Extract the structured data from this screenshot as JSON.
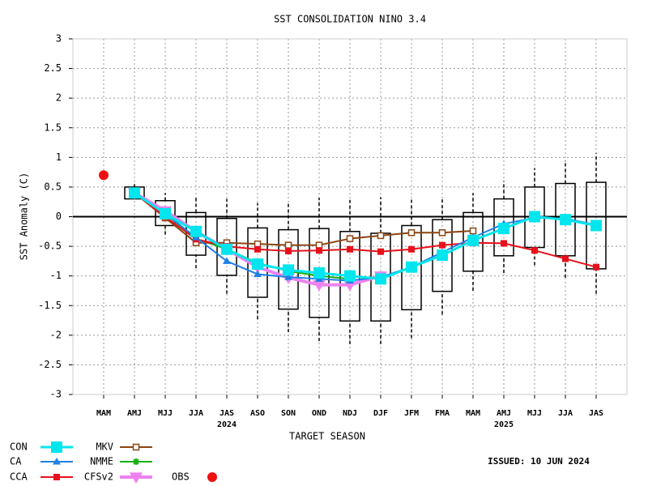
{
  "chart_data": {
    "type": "line",
    "title": "SST CONSOLIDATION NINO 3.4",
    "y_label": "SST Anomaly (C)",
    "x_label": "TARGET SEASON",
    "issued": "ISSUED: 10 JUN 2024",
    "categories": [
      "MAM",
      "AMJ",
      "MJJ",
      "JJA",
      "JAS",
      "ASO",
      "SON",
      "OND",
      "NDJ",
      "DJF",
      "JFM",
      "FMA",
      "MAM",
      "AMJ",
      "MJJ",
      "JJA",
      "JAS"
    ],
    "year_labels": [
      null,
      null,
      null,
      null,
      "2024",
      null,
      null,
      null,
      null,
      null,
      null,
      null,
      null,
      "2025",
      null,
      null,
      null
    ],
    "ylim": [
      -3,
      3
    ],
    "yticks": [
      3,
      2.5,
      2,
      1.5,
      1,
      0.5,
      0,
      -0.5,
      -1,
      -1.5,
      -2,
      -2.5,
      -3
    ],
    "grid": true,
    "boxes": {
      "min": [
        null,
        0.35,
        -0.3,
        -0.87,
        -1.3,
        -1.73,
        -1.95,
        -2.1,
        -2.15,
        -2.15,
        -2.05,
        -1.65,
        -1.25,
        -0.95,
        -0.82,
        -1.03,
        -1.3
      ],
      "q1": [
        null,
        0.3,
        -0.15,
        -0.65,
        -0.99,
        -1.36,
        -1.56,
        -1.7,
        -1.76,
        -1.76,
        -1.57,
        -1.26,
        -0.92,
        -0.66,
        -0.52,
        -0.66,
        -0.88
      ],
      "q3": [
        null,
        0.5,
        0.27,
        0.07,
        -0.03,
        -0.19,
        -0.22,
        -0.2,
        -0.25,
        -0.28,
        -0.15,
        -0.05,
        0.07,
        0.3,
        0.5,
        0.56,
        0.58
      ],
      "max": [
        null,
        0.55,
        0.4,
        0.33,
        0.3,
        0.23,
        0.25,
        0.32,
        0.3,
        0.33,
        0.32,
        0.33,
        0.4,
        0.6,
        0.82,
        0.95,
        1.07
      ]
    },
    "series": [
      {
        "name": "CON",
        "color": "#00e5ee",
        "marker": "square-big",
        "values": [
          null,
          0.4,
          0.05,
          -0.25,
          -0.55,
          -0.8,
          -0.9,
          -0.95,
          -1.0,
          -1.05,
          -0.85,
          -0.65,
          -0.4,
          -0.2,
          0.0,
          -0.05,
          -0.15
        ]
      },
      {
        "name": "CA",
        "color": "#1e80e6",
        "marker": "triangle",
        "values": [
          null,
          0.4,
          0.05,
          -0.35,
          -0.75,
          -0.97,
          -1.02,
          -1.05,
          -1.08,
          -1.02,
          -0.85,
          -0.6,
          -0.35,
          -0.12,
          -0.02,
          -0.03,
          -0.14
        ]
      },
      {
        "name": "CCA",
        "color": "#e8101a",
        "marker": "square",
        "values": [
          null,
          0.4,
          0.0,
          -0.38,
          -0.5,
          -0.55,
          -0.58,
          -0.57,
          -0.55,
          -0.59,
          -0.55,
          -0.48,
          -0.44,
          -0.45,
          -0.57,
          -0.71,
          -0.85
        ]
      },
      {
        "name": "MKV",
        "color": "#8b4513",
        "marker": "open-square",
        "values": [
          null,
          0.4,
          -0.02,
          -0.44,
          -0.44,
          -0.46,
          -0.48,
          -0.48,
          -0.37,
          -0.32,
          -0.27,
          -0.27,
          -0.24,
          null,
          null,
          null,
          null
        ]
      },
      {
        "name": "NMME",
        "color": "#16b016",
        "marker": "star",
        "values": [
          null,
          0.4,
          0.05,
          -0.37,
          -0.55,
          -0.78,
          -0.92,
          -1.0,
          -1.05,
          null,
          null,
          null,
          null,
          null,
          null,
          null,
          null
        ]
      },
      {
        "name": "CFSv2",
        "color": "#ee82ee",
        "marker": "triangle-down",
        "values": [
          null,
          0.4,
          0.1,
          -0.25,
          -0.55,
          -0.85,
          -1.03,
          -1.15,
          -1.15,
          -1.0,
          null,
          null,
          null,
          null,
          null,
          null,
          null
        ]
      },
      {
        "name": "OBS",
        "color": "#ee1111",
        "marker": "circle",
        "values": [
          0.7,
          null,
          null,
          null,
          null,
          null,
          null,
          null,
          null,
          null,
          null,
          null,
          null,
          null,
          null,
          null,
          null
        ]
      }
    ]
  }
}
